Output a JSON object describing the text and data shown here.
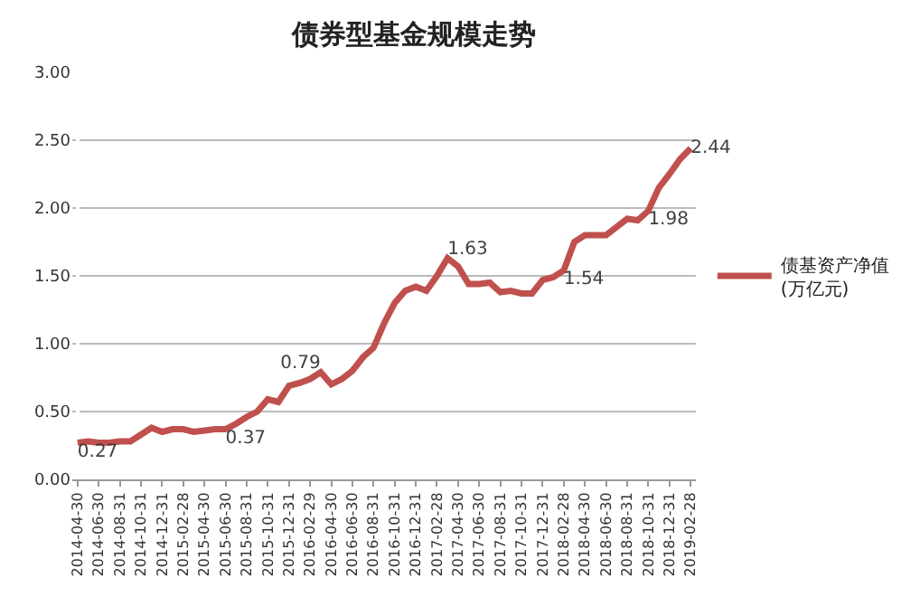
{
  "chart_data": {
    "type": "line",
    "title": "债券型基金规模走势",
    "categories": [
      "2014-04-30",
      null,
      "2014-06-30",
      null,
      "2014-08-31",
      null,
      "2014-10-31",
      null,
      "2014-12-31",
      null,
      "2015-02-28",
      null,
      "2015-04-30",
      null,
      "2015-06-30",
      null,
      "2015-08-31",
      null,
      "2015-10-31",
      null,
      "2015-12-31",
      null,
      "2016-02-29",
      null,
      "2016-04-30",
      null,
      "2016-06-30",
      null,
      "2016-08-31",
      null,
      "2016-10-31",
      null,
      "2016-12-31",
      null,
      "2017-02-28",
      null,
      "2017-04-30",
      null,
      "2017-06-30",
      null,
      "2017-08-31",
      null,
      "2017-10-31",
      null,
      "2017-12-31",
      null,
      "2018-02-28",
      null,
      "2018-04-30",
      null,
      "2018-06-30",
      null,
      "2018-08-31",
      null,
      "2018-10-31",
      null,
      "2018-12-31",
      null,
      "2019-02-28"
    ],
    "series": [
      {
        "name": "债基资产净值\n(万亿元)",
        "color": "#c0504d",
        "values": [
          0.27,
          0.28,
          0.27,
          0.27,
          0.28,
          0.28,
          0.33,
          0.38,
          0.35,
          0.37,
          0.37,
          0.35,
          0.36,
          0.37,
          0.37,
          0.41,
          0.46,
          0.5,
          0.59,
          0.57,
          0.69,
          0.71,
          0.74,
          0.79,
          0.7,
          0.74,
          0.8,
          0.9,
          0.97,
          1.15,
          1.3,
          1.39,
          1.42,
          1.39,
          1.5,
          1.63,
          1.57,
          1.44,
          1.44,
          1.45,
          1.38,
          1.39,
          1.37,
          1.37,
          1.47,
          1.49,
          1.54,
          1.75,
          1.8,
          1.8,
          1.8,
          1.86,
          1.92,
          1.91,
          1.98,
          2.15,
          2.25,
          2.36,
          2.44
        ],
        "value_labels": [
          "0.27",
          null,
          null,
          null,
          null,
          null,
          null,
          null,
          null,
          null,
          null,
          null,
          null,
          null,
          "0.37",
          null,
          null,
          null,
          null,
          null,
          null,
          null,
          null,
          "0.79",
          null,
          null,
          null,
          null,
          null,
          null,
          null,
          null,
          null,
          null,
          null,
          "1.63",
          null,
          null,
          null,
          null,
          null,
          null,
          null,
          null,
          null,
          null,
          "1.54",
          null,
          null,
          null,
          null,
          null,
          null,
          null,
          "1.98",
          null,
          null,
          null,
          "2.44"
        ]
      }
    ],
    "ylim": [
      0,
      3
    ],
    "yticks": [
      {
        "value": 0,
        "label": "0.00"
      },
      {
        "value": 0.5,
        "label": "0.50"
      },
      {
        "value": 1,
        "label": "1.00"
      },
      {
        "value": 1.5,
        "label": "1.50"
      },
      {
        "value": 2,
        "label": "2.00"
      },
      {
        "value": 2.5,
        "label": "2.50"
      },
      {
        "value": 3,
        "label": "3.00"
      }
    ],
    "grid": "y",
    "legend": "right",
    "marker": "none",
    "line_style": "solid"
  }
}
